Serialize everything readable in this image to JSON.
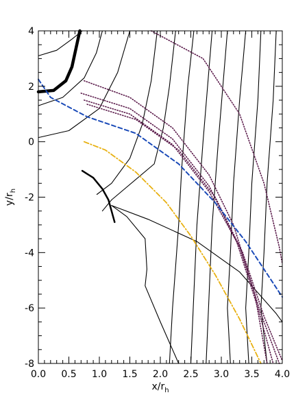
{
  "chart_data": {
    "type": "line",
    "xlabel": {
      "main": "x/r",
      "sub": "h"
    },
    "ylabel": {
      "main": "y/r",
      "sub": "h"
    },
    "xlim": [
      0,
      4
    ],
    "ylim": [
      -8,
      4
    ],
    "xticks": [
      0.0,
      0.5,
      1.0,
      1.5,
      2.0,
      2.5,
      3.0,
      3.5,
      4.0
    ],
    "xtick_labels": [
      "0.0",
      "0.5",
      "1.0",
      "1.5",
      "2.0",
      "2.5",
      "3.0",
      "3.5",
      "4.0"
    ],
    "yticks": [
      -8,
      -6,
      -4,
      -2,
      0,
      2,
      4
    ],
    "ytick_labels": [
      "-8",
      "-6",
      "-4",
      "-2",
      "0",
      "2",
      "4"
    ],
    "grid": false,
    "series": [
      {
        "style": "solid",
        "color": "#000000",
        "width": 1.1,
        "points": [
          [
            0.0,
            3.1
          ],
          [
            0.3,
            3.3
          ],
          [
            0.55,
            3.7
          ],
          [
            0.72,
            4.0
          ]
        ]
      },
      {
        "style": "solid",
        "color": "#000000",
        "width": 1.1,
        "points": [
          [
            0.0,
            1.3
          ],
          [
            0.4,
            1.6
          ],
          [
            0.75,
            2.3
          ],
          [
            0.95,
            3.2
          ],
          [
            1.05,
            4.0
          ]
        ]
      },
      {
        "style": "solid",
        "color": "#000000",
        "width": 1.1,
        "points": [
          [
            0.0,
            0.15
          ],
          [
            0.5,
            0.4
          ],
          [
            1.0,
            1.2
          ],
          [
            1.3,
            2.5
          ],
          [
            1.5,
            4.0
          ]
        ]
      },
      {
        "style": "solid",
        "color": "#000000",
        "width": 1.1,
        "points": [
          [
            0.96,
            -1.9
          ],
          [
            1.2,
            -1.5
          ],
          [
            1.5,
            -0.6
          ],
          [
            1.7,
            0.6
          ],
          [
            1.85,
            2.2
          ],
          [
            1.95,
            4.0
          ]
        ]
      },
      {
        "style": "solid",
        "color": "#000000",
        "width": 1.1,
        "points": [
          [
            1.05,
            -2.5
          ],
          [
            1.2,
            -2.1
          ],
          [
            1.9,
            -0.8
          ],
          [
            2.05,
            0.5
          ],
          [
            2.15,
            2.0
          ],
          [
            2.25,
            4.0
          ]
        ]
      },
      {
        "style": "solid",
        "color": "#000000",
        "width": 1.1,
        "points": [
          [
            1.2,
            -2.3
          ],
          [
            1.45,
            -2.7
          ],
          [
            1.75,
            -3.5
          ],
          [
            1.78,
            -4.6
          ],
          [
            1.75,
            -5.2
          ],
          [
            2.0,
            -6.5
          ],
          [
            2.3,
            -8.0
          ]
        ]
      },
      {
        "style": "solid",
        "color": "#000000",
        "width": 1.1,
        "points": [
          [
            1.2,
            -2.3
          ],
          [
            1.8,
            -2.8
          ],
          [
            2.6,
            -3.6
          ],
          [
            3.3,
            -4.7
          ],
          [
            3.9,
            -6.2
          ],
          [
            4.0,
            -6.5
          ]
        ]
      },
      {
        "style": "solid",
        "color": "#000000",
        "width": 1.1,
        "points": [
          [
            2.15,
            -8.0
          ],
          [
            2.2,
            -6.0
          ],
          [
            2.25,
            -4.5
          ],
          [
            2.3,
            -3.0
          ],
          [
            2.35,
            -1.0
          ],
          [
            2.45,
            2.0
          ],
          [
            2.55,
            4.0
          ]
        ]
      },
      {
        "style": "solid",
        "color": "#000000",
        "width": 1.1,
        "points": [
          [
            2.5,
            -8.0
          ],
          [
            2.55,
            -5.5
          ],
          [
            2.6,
            -3.0
          ],
          [
            2.7,
            0.0
          ],
          [
            2.85,
            4.0
          ]
        ]
      },
      {
        "style": "solid",
        "color": "#000000",
        "width": 1.1,
        "points": [
          [
            2.75,
            -8.0
          ],
          [
            2.8,
            -5.5
          ],
          [
            2.85,
            -3.0
          ],
          [
            2.95,
            0.0
          ],
          [
            3.1,
            4.0
          ]
        ]
      },
      {
        "style": "solid",
        "color": "#000000",
        "width": 1.1,
        "points": [
          [
            3.15,
            -8.0
          ],
          [
            3.1,
            -6.0
          ],
          [
            3.15,
            -4.0
          ],
          [
            3.2,
            -1.5
          ],
          [
            3.3,
            1.5
          ],
          [
            3.4,
            4.0
          ]
        ]
      },
      {
        "style": "solid",
        "color": "#000000",
        "width": 1.1,
        "points": [
          [
            3.45,
            -8.0
          ],
          [
            3.4,
            -6.0
          ],
          [
            3.45,
            -4.0
          ],
          [
            3.5,
            -1.5
          ],
          [
            3.6,
            1.5
          ],
          [
            3.65,
            4.0
          ]
        ]
      },
      {
        "style": "solid",
        "color": "#000000",
        "width": 1.1,
        "points": [
          [
            3.75,
            -8.0
          ],
          [
            3.65,
            -6.0
          ],
          [
            3.7,
            -4.0
          ],
          [
            3.75,
            -1.5
          ],
          [
            3.85,
            1.5
          ],
          [
            3.9,
            4.0
          ]
        ]
      },
      {
        "style": "solid",
        "color": "#000000",
        "width": 4.5,
        "points": [
          [
            0.0,
            1.8
          ],
          [
            0.25,
            1.85
          ],
          [
            0.45,
            2.2
          ],
          [
            0.55,
            2.7
          ],
          [
            0.62,
            3.4
          ],
          [
            0.68,
            4.0
          ]
        ]
      },
      {
        "style": "solid",
        "color": "#000000",
        "width": 2.5,
        "points": [
          [
            0.72,
            -1.05
          ],
          [
            0.9,
            -1.3
          ],
          [
            1.05,
            -1.7
          ],
          [
            1.15,
            -2.1
          ],
          [
            1.2,
            -2.5
          ],
          [
            1.25,
            -2.9
          ]
        ]
      },
      {
        "style": "dotted",
        "color": "#5a1a4a",
        "width": 1.6,
        "points": [
          [
            0.75,
            2.2
          ],
          [
            1.5,
            1.6
          ],
          [
            2.2,
            0.5
          ],
          [
            2.8,
            -1.2
          ],
          [
            3.2,
            -3.0
          ],
          [
            3.55,
            -5.5
          ],
          [
            3.75,
            -8.0
          ]
        ]
      },
      {
        "style": "dotted",
        "color": "#5a1a4a",
        "width": 1.6,
        "points": [
          [
            0.7,
            1.75
          ],
          [
            1.5,
            1.2
          ],
          [
            2.2,
            0.1
          ],
          [
            2.8,
            -1.6
          ],
          [
            3.25,
            -3.6
          ],
          [
            3.6,
            -6.0
          ],
          [
            3.85,
            -8.0
          ]
        ]
      },
      {
        "style": "dotted",
        "color": "#5a1a4a",
        "width": 1.6,
        "points": [
          [
            0.75,
            1.5
          ],
          [
            1.5,
            1.0
          ],
          [
            2.2,
            -0.1
          ],
          [
            2.8,
            -1.8
          ],
          [
            3.3,
            -3.8
          ],
          [
            3.65,
            -6.2
          ],
          [
            3.95,
            -8.0
          ]
        ]
      },
      {
        "style": "dotted",
        "color": "#5a1a4a",
        "width": 1.6,
        "points": [
          [
            0.8,
            1.35
          ],
          [
            1.6,
            0.8
          ],
          [
            2.3,
            -0.3
          ],
          [
            2.9,
            -2.0
          ],
          [
            3.35,
            -4.0
          ],
          [
            3.7,
            -6.3
          ],
          [
            4.0,
            -7.9
          ]
        ]
      },
      {
        "style": "dotted",
        "color": "#5a1a4a",
        "width": 1.6,
        "points": [
          [
            1.85,
            4.0
          ],
          [
            2.7,
            3.0
          ],
          [
            3.3,
            1.0
          ],
          [
            3.7,
            -1.5
          ],
          [
            3.95,
            -3.8
          ],
          [
            4.0,
            -4.4
          ]
        ]
      },
      {
        "style": "dashed",
        "color": "#1a4ab8",
        "width": 2.0,
        "points": [
          [
            0.0,
            2.25
          ],
          [
            0.2,
            1.6
          ],
          [
            0.8,
            0.9
          ],
          [
            1.6,
            0.3
          ],
          [
            2.3,
            -0.8
          ],
          [
            2.9,
            -2.2
          ],
          [
            3.4,
            -3.6
          ],
          [
            4.0,
            -5.6
          ]
        ]
      },
      {
        "style": "dashdot",
        "color": "#e8b010",
        "width": 1.8,
        "points": [
          [
            0.75,
            0.0
          ],
          [
            1.1,
            -0.3
          ],
          [
            1.6,
            -1.1
          ],
          [
            2.1,
            -2.2
          ],
          [
            2.5,
            -3.4
          ],
          [
            2.9,
            -4.8
          ],
          [
            3.3,
            -6.4
          ],
          [
            3.65,
            -8.0
          ]
        ]
      }
    ]
  }
}
